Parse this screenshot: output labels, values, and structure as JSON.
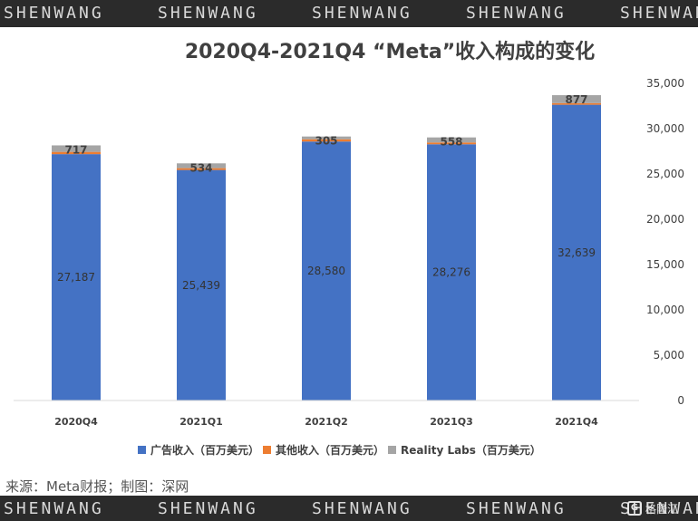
{
  "watermark": {
    "items": [
      "SHENWANG",
      "SHENWANG",
      "SHENWANG",
      "SHENWANG",
      "SHENWANG"
    ]
  },
  "source_note": "来源：Meta财报；制图：深网",
  "logo": {
    "text": "格隆汇",
    "icon": "glh-logo-icon"
  },
  "chart_data": {
    "type": "bar",
    "stacked": true,
    "title": "2020Q4-2021Q4 “Meta”收入构成的变化",
    "categories": [
      "2020Q4",
      "2021Q1",
      "2021Q2",
      "2021Q3",
      "2021Q4"
    ],
    "series": [
      {
        "name": "广告收入（百万美元）",
        "values": [
          27187,
          25439,
          28580,
          28276,
          32639
        ],
        "color": "#4472c4",
        "labels": [
          "27,187",
          "25,439",
          "28,580",
          "28,276",
          "32,639"
        ]
      },
      {
        "name": "其他收入（百万美元）",
        "values": [
          250,
          200,
          250,
          200,
          180
        ],
        "color": "#ed7d31"
      },
      {
        "name": "Reality Labs（百万美元）",
        "values": [
          717,
          534,
          305,
          558,
          877
        ],
        "color": "#a5a5a5",
        "labels": [
          "717",
          "534",
          "305",
          "558",
          "877"
        ]
      }
    ],
    "ylim": [
      0,
      35000
    ],
    "yticks": [
      0,
      5000,
      10000,
      15000,
      20000,
      25000,
      30000,
      35000
    ],
    "ytick_labels": [
      "0",
      "5,000",
      "10,000",
      "15,000",
      "20,000",
      "25,000",
      "30,000",
      "35,000"
    ],
    "y_axis_side": "right",
    "legend_position": "bottom",
    "grid": false
  }
}
